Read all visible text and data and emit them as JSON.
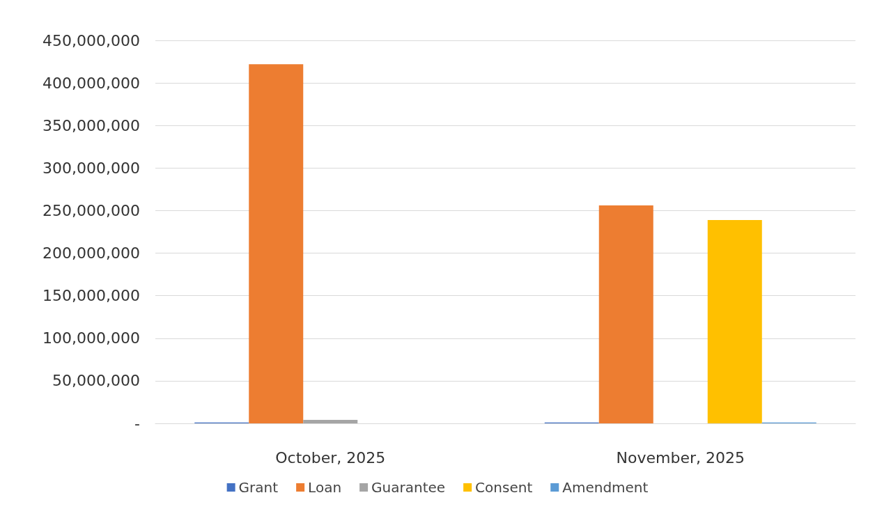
{
  "chart_data": {
    "type": "bar",
    "categories": [
      "October, 2025",
      "November, 2025"
    ],
    "series": [
      {
        "name": "Grant",
        "color": "#4472c4",
        "values": [
          1000000,
          1000000
        ]
      },
      {
        "name": "Loan",
        "color": "#ed7d31",
        "values": [
          422000000,
          256000000
        ]
      },
      {
        "name": "Guarantee",
        "color": "#a5a5a5",
        "values": [
          4000000,
          null
        ]
      },
      {
        "name": "Consent",
        "color": "#ffc000",
        "values": [
          null,
          239000000
        ]
      },
      {
        "name": "Amendment",
        "color": "#5b9bd5",
        "values": [
          null,
          1000000
        ]
      }
    ],
    "ylim": [
      0,
      450000000
    ],
    "yticks": [
      {
        "value": 0,
        "label": "-"
      },
      {
        "value": 50000000,
        "label": "50,000,000"
      },
      {
        "value": 100000000,
        "label": "100,000,000"
      },
      {
        "value": 150000000,
        "label": "150,000,000"
      },
      {
        "value": 200000000,
        "label": "200,000,000"
      },
      {
        "value": 250000000,
        "label": "250,000,000"
      },
      {
        "value": 300000000,
        "label": "300,000,000"
      },
      {
        "value": 350000000,
        "label": "350,000,000"
      },
      {
        "value": 400000000,
        "label": "400,000,000"
      },
      {
        "value": 450000000,
        "label": "450,000,000"
      }
    ],
    "grid": "y",
    "legend": "bottom"
  }
}
